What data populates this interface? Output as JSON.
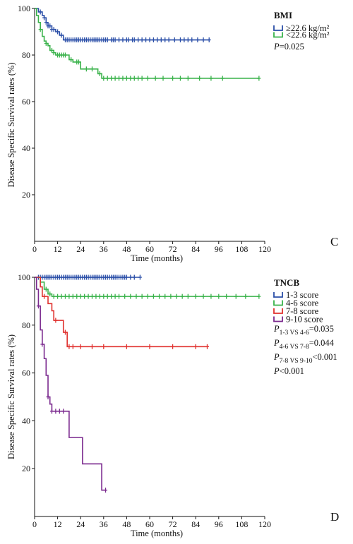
{
  "chart_data": [
    {
      "type": "line",
      "subtype": "kaplan-meier",
      "panel_label": "C",
      "xlabel": "Time (months)",
      "ylabel": "Disease Specific Survival rates (%)",
      "xlim": [
        0,
        120
      ],
      "ylim": [
        0,
        100
      ],
      "xticks": [
        0,
        12,
        24,
        36,
        48,
        60,
        72,
        84,
        96,
        108,
        120
      ],
      "yticks": [
        20,
        40,
        60,
        80,
        100
      ],
      "grid": false,
      "legend_title": "BMI",
      "legend_placement": "right",
      "p_lines": [
        {
          "p": "P",
          "sub": "",
          "rest": "=0.025"
        }
      ],
      "series": [
        {
          "name": "≥22.6 kg/m²",
          "color": "#2b4fa8",
          "steps": [
            [
              0,
              100
            ],
            [
              2,
              98.5
            ],
            [
              4,
              97
            ],
            [
              5,
              96
            ],
            [
              6,
              94
            ],
            [
              7,
              92.5
            ],
            [
              9,
              91
            ],
            [
              11,
              90
            ],
            [
              13,
              88.5
            ],
            [
              15,
              86.5
            ],
            [
              91,
              86.5
            ]
          ],
          "censors": [
            3,
            5,
            6,
            7,
            8,
            9,
            10,
            12,
            14,
            16,
            17,
            18,
            19,
            20,
            21,
            22,
            23,
            24,
            25,
            26,
            27,
            28,
            29,
            30,
            31,
            32,
            33,
            34,
            35,
            36,
            37,
            38,
            40,
            41,
            42,
            44,
            46,
            48,
            49,
            51,
            52,
            54,
            56,
            58,
            60,
            62,
            64,
            66,
            68,
            70,
            73,
            76,
            78,
            80,
            82,
            85,
            88,
            91
          ]
        },
        {
          "name": "<22.6 kg/m²",
          "color": "#39b24a",
          "steps": [
            [
              0,
              100
            ],
            [
              1,
              97
            ],
            [
              2,
              94
            ],
            [
              3,
              91
            ],
            [
              4,
              88
            ],
            [
              5,
              86
            ],
            [
              6,
              85
            ],
            [
              7,
              84
            ],
            [
              8,
              82
            ],
            [
              10,
              81
            ],
            [
              11,
              80
            ],
            [
              17,
              80
            ],
            [
              18,
              78
            ],
            [
              20,
              77
            ],
            [
              24,
              74
            ],
            [
              32,
              74
            ],
            [
              33,
              72
            ],
            [
              35,
              70
            ],
            [
              117,
              70
            ]
          ],
          "censors": [
            3,
            6,
            9,
            10,
            12,
            13,
            14,
            15,
            16,
            19,
            22,
            23,
            27,
            30,
            34,
            36,
            38,
            40,
            42,
            44,
            46,
            48,
            50,
            52,
            54,
            56,
            59,
            63,
            67,
            72,
            76,
            80,
            86,
            92,
            98,
            117
          ]
        }
      ]
    },
    {
      "type": "line",
      "subtype": "kaplan-meier",
      "panel_label": "D",
      "xlabel": "Time (months)",
      "ylabel": "Disease Specific Survival rates (%)",
      "xlim": [
        0,
        120
      ],
      "ylim": [
        0,
        100
      ],
      "xticks": [
        0,
        12,
        24,
        36,
        48,
        60,
        72,
        84,
        96,
        108,
        120
      ],
      "yticks": [
        20,
        40,
        60,
        80,
        100
      ],
      "grid": false,
      "legend_title": "TNCB",
      "legend_placement": "right",
      "p_lines": [
        {
          "p": "P",
          "sub": "1-3 VS 4-6",
          "rest": "=0.035"
        },
        {
          "p": "P",
          "sub": "4-6 VS 7-8",
          "rest": "=0.044"
        },
        {
          "p": "P",
          "sub": "7-8 VS 9-10",
          "rest": "<0.001"
        },
        {
          "p": "P",
          "sub": "",
          "rest": "<0.001"
        }
      ],
      "series": [
        {
          "name": "1-3   score",
          "color": "#2b4fa8",
          "steps": [
            [
              0,
              100
            ],
            [
              55,
              100
            ]
          ],
          "censors": [
            2,
            3,
            4,
            5,
            6,
            7,
            8,
            9,
            10,
            11,
            12,
            13,
            14,
            15,
            16,
            17,
            18,
            19,
            20,
            21,
            22,
            23,
            24,
            25,
            26,
            27,
            28,
            29,
            30,
            31,
            32,
            33,
            34,
            35,
            36,
            37,
            38,
            39,
            40,
            41,
            42,
            43,
            44,
            45,
            46,
            47,
            48,
            50,
            52,
            55
          ]
        },
        {
          "name": "4-6   score",
          "color": "#39b24a",
          "steps": [
            [
              0,
              100
            ],
            [
              3,
              98
            ],
            [
              5,
              95
            ],
            [
              7,
              93
            ],
            [
              9,
              92
            ],
            [
              117,
              92
            ]
          ],
          "censors": [
            6,
            8,
            10,
            12,
            14,
            16,
            18,
            20,
            22,
            24,
            26,
            28,
            30,
            32,
            34,
            36,
            38,
            40,
            42,
            44,
            47,
            50,
            53,
            56,
            59,
            62,
            65,
            68,
            71,
            74,
            77,
            80,
            84,
            88,
            92,
            96,
            100,
            105,
            110,
            117
          ]
        },
        {
          "name": "7-8   score",
          "color": "#e0312e",
          "steps": [
            [
              0,
              100
            ],
            [
              3,
              96
            ],
            [
              4,
              92
            ],
            [
              7,
              89
            ],
            [
              9,
              86
            ],
            [
              10,
              82
            ],
            [
              13,
              82
            ],
            [
              15,
              77
            ],
            [
              17,
              71
            ],
            [
              90,
              71
            ]
          ],
          "censors": [
            5,
            11,
            16,
            18,
            20,
            24,
            30,
            36,
            48,
            60,
            72,
            84,
            90
          ]
        },
        {
          "name": "9-10 score",
          "color": "#7b2a8f",
          "steps": [
            [
              0,
              100
            ],
            [
              1,
              95
            ],
            [
              2,
              88
            ],
            [
              3,
              78
            ],
            [
              4,
              72
            ],
            [
              5,
              66
            ],
            [
              6,
              59
            ],
            [
              7,
              50
            ],
            [
              8,
              47
            ],
            [
              9,
              44
            ],
            [
              17,
              44
            ],
            [
              18,
              33
            ],
            [
              24,
              33
            ],
            [
              25,
              22
            ],
            [
              34,
              22
            ],
            [
              35,
              11
            ],
            [
              37,
              11
            ]
          ],
          "censors": [
            2,
            4,
            7,
            9,
            11,
            13,
            15,
            37
          ]
        }
      ]
    }
  ]
}
